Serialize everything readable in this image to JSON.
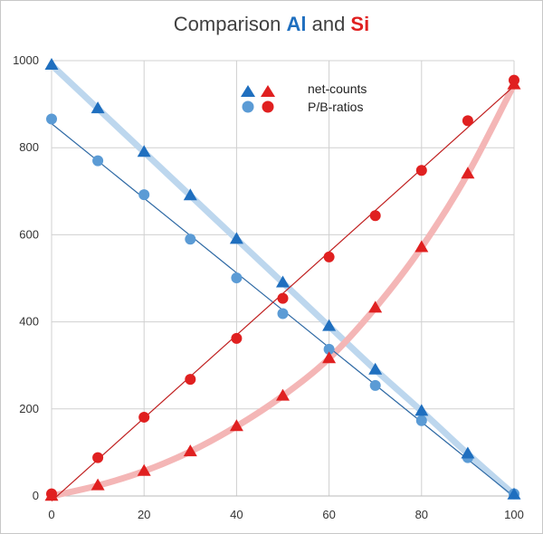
{
  "title": {
    "prefix": "Comparison ",
    "al": "Al",
    "middle": " and ",
    "si": "Si"
  },
  "colors": {
    "al_dark": "#1f6fbf",
    "al_light": "#5b9bd5",
    "al_band": "#bdd7ee",
    "si_red": "#e02020",
    "si_band": "#f4b6b6",
    "grid": "#d0d0d0"
  },
  "chart_data": {
    "type": "scatter",
    "xlim": [
      0,
      100
    ],
    "ylim": [
      0,
      1000
    ],
    "x_ticks": [
      0,
      20,
      40,
      60,
      80,
      100
    ],
    "y_ticks": [
      0,
      200,
      400,
      600,
      800,
      1000
    ],
    "grid": true,
    "legend": {
      "placement": "top-right",
      "entries": [
        "net-counts",
        "P/B-ratios"
      ]
    },
    "series": [
      {
        "element": "Al",
        "kind": "net-counts",
        "marker": "triangle",
        "x": [
          0,
          10,
          20,
          30,
          40,
          50,
          60,
          70,
          80,
          90,
          100
        ],
        "y": [
          990,
          890,
          790,
          690,
          590,
          490,
          390,
          290,
          195,
          97,
          3
        ]
      },
      {
        "element": "Al",
        "kind": "P/B-ratios",
        "marker": "circle",
        "x": [
          0,
          10,
          20,
          30,
          40,
          50,
          60,
          70,
          80,
          90,
          100
        ],
        "y": [
          866,
          770,
          692,
          590,
          501,
          419,
          337,
          254,
          173,
          88,
          5
        ]
      },
      {
        "element": "Si",
        "kind": "net-counts",
        "marker": "triangle",
        "x": [
          0,
          10,
          20,
          30,
          40,
          50,
          60,
          70,
          80,
          90,
          100
        ],
        "y": [
          0,
          24,
          57,
          102,
          160,
          230,
          316,
          432,
          571,
          740,
          945
        ]
      },
      {
        "element": "Si",
        "kind": "P/B-ratios",
        "marker": "circle",
        "x": [
          0,
          10,
          20,
          30,
          40,
          50,
          60,
          70,
          80,
          90,
          100
        ],
        "y": [
          5,
          88,
          181,
          268,
          362,
          454,
          549,
          644,
          748,
          862,
          955
        ]
      }
    ]
  }
}
